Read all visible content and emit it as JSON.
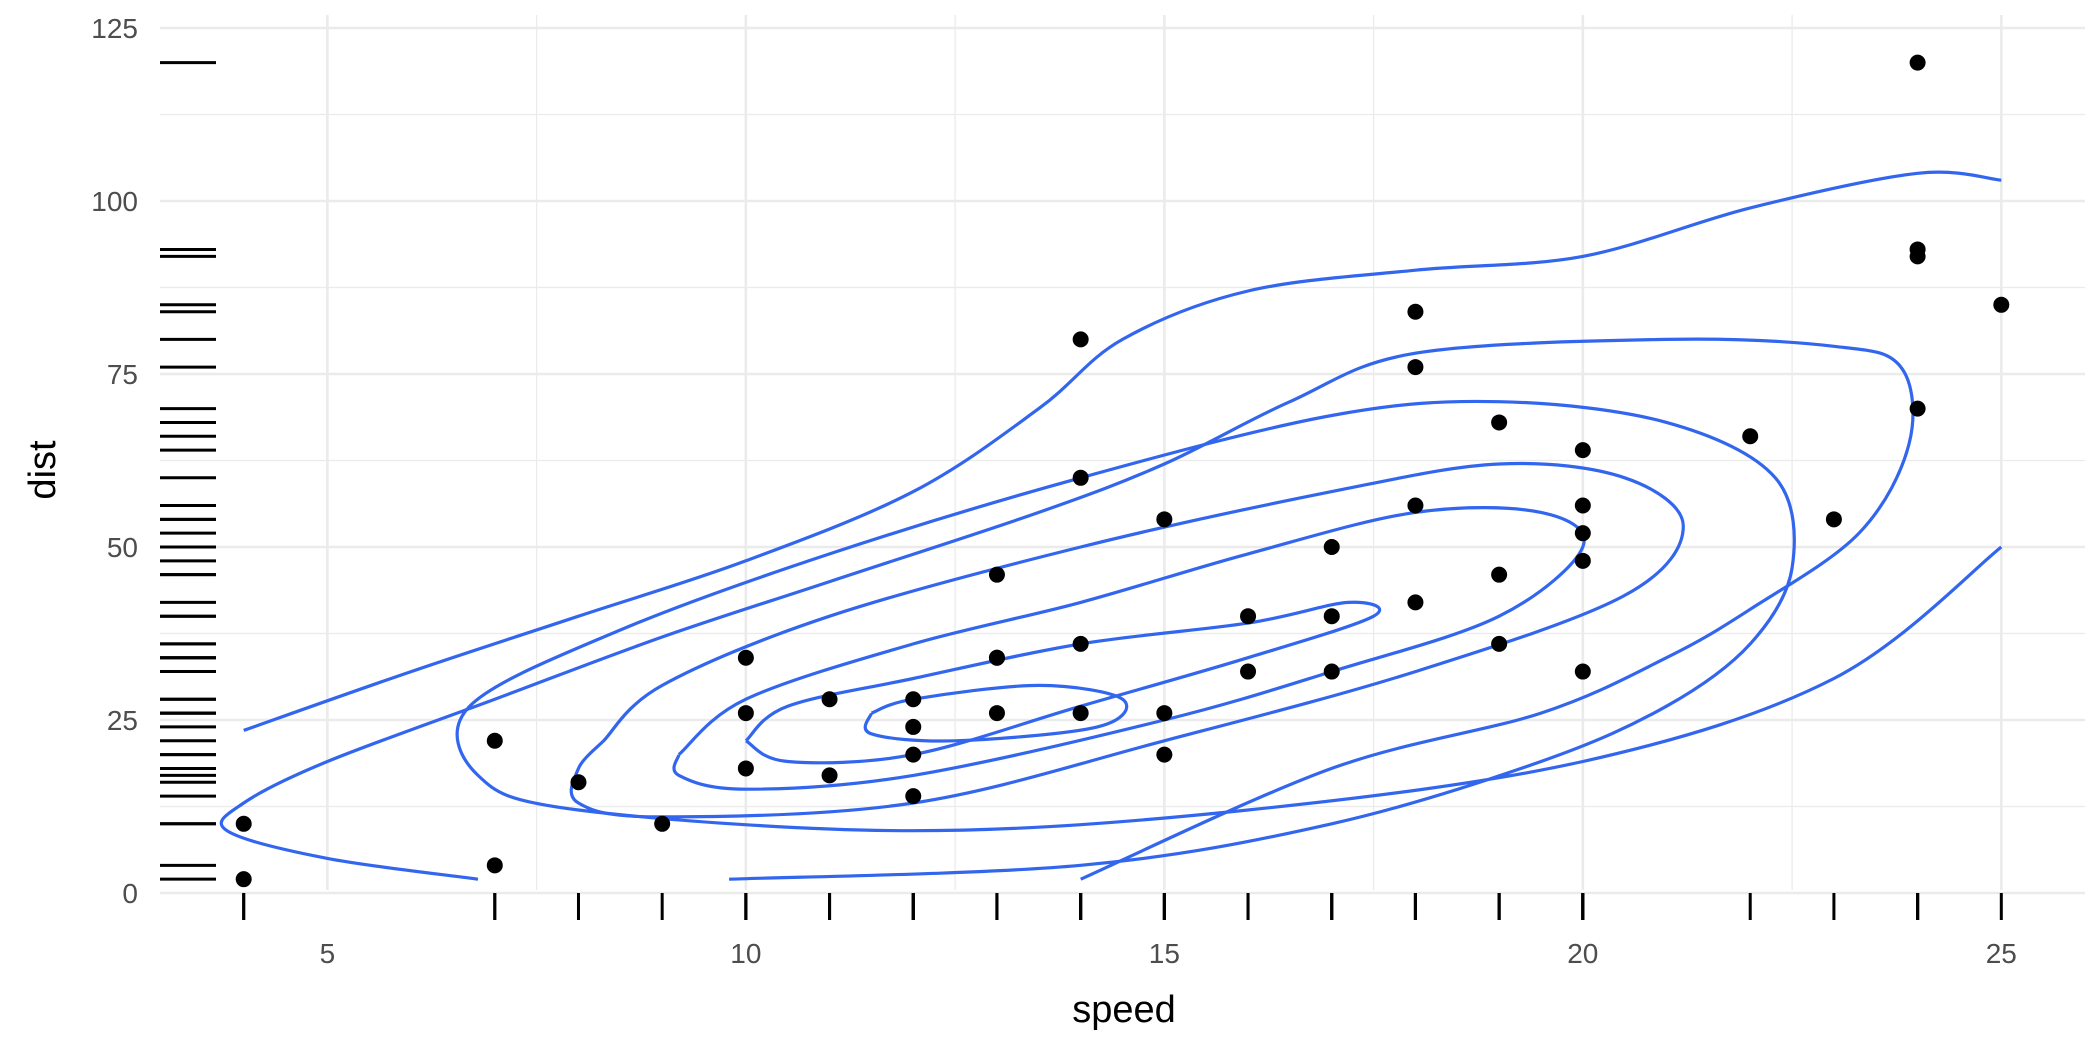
{
  "chart_data": {
    "type": "scatter",
    "title": "",
    "xlabel": "speed",
    "ylabel": "dist",
    "xlim": [
      3,
      26
    ],
    "ylim": [
      0,
      125
    ],
    "x_ticks": [
      5,
      10,
      15,
      20,
      25
    ],
    "y_ticks": [
      0,
      25,
      50,
      75,
      100,
      125
    ],
    "grid": true,
    "legend": "none",
    "colors": {
      "points": "#000000",
      "contours": "#3366ee",
      "grid": "#ebebeb"
    },
    "points": [
      {
        "x": 4,
        "y": 2
      },
      {
        "x": 4,
        "y": 10
      },
      {
        "x": 7,
        "y": 4
      },
      {
        "x": 7,
        "y": 22
      },
      {
        "x": 8,
        "y": 16
      },
      {
        "x": 9,
        "y": 10
      },
      {
        "x": 10,
        "y": 18
      },
      {
        "x": 10,
        "y": 26
      },
      {
        "x": 10,
        "y": 34
      },
      {
        "x": 11,
        "y": 17
      },
      {
        "x": 11,
        "y": 28
      },
      {
        "x": 12,
        "y": 14
      },
      {
        "x": 12,
        "y": 20
      },
      {
        "x": 12,
        "y": 24
      },
      {
        "x": 12,
        "y": 28
      },
      {
        "x": 13,
        "y": 26
      },
      {
        "x": 13,
        "y": 34
      },
      {
        "x": 13,
        "y": 34
      },
      {
        "x": 13,
        "y": 46
      },
      {
        "x": 14,
        "y": 26
      },
      {
        "x": 14,
        "y": 36
      },
      {
        "x": 14,
        "y": 60
      },
      {
        "x": 14,
        "y": 80
      },
      {
        "x": 15,
        "y": 20
      },
      {
        "x": 15,
        "y": 26
      },
      {
        "x": 15,
        "y": 54
      },
      {
        "x": 16,
        "y": 32
      },
      {
        "x": 16,
        "y": 40
      },
      {
        "x": 17,
        "y": 32
      },
      {
        "x": 17,
        "y": 40
      },
      {
        "x": 17,
        "y": 50
      },
      {
        "x": 18,
        "y": 42
      },
      {
        "x": 18,
        "y": 56
      },
      {
        "x": 18,
        "y": 76
      },
      {
        "x": 18,
        "y": 84
      },
      {
        "x": 19,
        "y": 36
      },
      {
        "x": 19,
        "y": 46
      },
      {
        "x": 19,
        "y": 68
      },
      {
        "x": 20,
        "y": 32
      },
      {
        "x": 20,
        "y": 48
      },
      {
        "x": 20,
        "y": 52
      },
      {
        "x": 20,
        "y": 56
      },
      {
        "x": 20,
        "y": 64
      },
      {
        "x": 22,
        "y": 66
      },
      {
        "x": 23,
        "y": 54
      },
      {
        "x": 24,
        "y": 70
      },
      {
        "x": 24,
        "y": 92
      },
      {
        "x": 24,
        "y": 93
      },
      {
        "x": 24,
        "y": 120
      },
      {
        "x": 25,
        "y": 85
      }
    ],
    "contours": [
      [
        [
          4.0,
          23.5
        ],
        [
          6.0,
          32
        ],
        [
          8.0,
          40
        ],
        [
          10.0,
          48
        ],
        [
          12.0,
          58
        ],
        [
          13.5,
          70
        ],
        [
          14.5,
          80
        ],
        [
          16.0,
          87
        ],
        [
          18.0,
          90
        ],
        [
          20.0,
          92
        ],
        [
          22.0,
          99
        ],
        [
          24.0,
          104
        ],
        [
          25.0,
          103
        ]
      ],
      [
        [
          6.8,
          2
        ],
        [
          5.0,
          5
        ],
        [
          3.8,
          9
        ],
        [
          4.0,
          13
        ],
        [
          5.0,
          19
        ],
        [
          7.0,
          28
        ],
        [
          9.0,
          37
        ],
        [
          11.0,
          45
        ],
        [
          13.5,
          55
        ],
        [
          15.0,
          62
        ],
        [
          16.5,
          71
        ],
        [
          18.0,
          78
        ],
        [
          21.0,
          80
        ],
        [
          23.0,
          79
        ],
        [
          23.8,
          76
        ],
        [
          23.9,
          65
        ],
        [
          23.3,
          52
        ],
        [
          22.0,
          41
        ],
        [
          21.0,
          34
        ],
        [
          19.5,
          26
        ],
        [
          17.0,
          18
        ],
        [
          14.0,
          2
        ]
      ],
      [
        [
          9.8,
          2
        ],
        [
          14.0,
          4
        ],
        [
          17.0,
          10
        ],
        [
          19.5,
          19
        ],
        [
          21.0,
          27
        ],
        [
          22.0,
          36
        ],
        [
          22.5,
          47
        ],
        [
          22.3,
          60
        ],
        [
          21.0,
          68
        ],
        [
          19.0,
          71
        ],
        [
          17.0,
          69
        ],
        [
          14.0,
          60
        ],
        [
          11.0,
          49
        ],
        [
          8.5,
          38
        ],
        [
          6.7,
          27
        ],
        [
          6.8,
          17
        ],
        [
          8.0,
          12
        ],
        [
          12.0,
          9
        ],
        [
          16.0,
          12
        ],
        [
          20.0,
          19
        ],
        [
          23.0,
          31
        ],
        [
          25.0,
          50
        ]
      ],
      [
        [
          8.3,
          22
        ],
        [
          9.0,
          30
        ],
        [
          11.0,
          40
        ],
        [
          14.0,
          50
        ],
        [
          17.0,
          58
        ],
        [
          19.0,
          62
        ],
        [
          20.5,
          60
        ],
        [
          21.2,
          53
        ],
        [
          20.5,
          43
        ],
        [
          18.0,
          32
        ],
        [
          15.0,
          22
        ],
        [
          12.0,
          13
        ],
        [
          9.0,
          11
        ],
        [
          8.0,
          13
        ],
        [
          8.0,
          18
        ],
        [
          8.3,
          22
        ]
      ],
      [
        [
          9.2,
          20
        ],
        [
          10.0,
          28
        ],
        [
          12.0,
          36
        ],
        [
          14.0,
          42
        ],
        [
          16.0,
          49
        ],
        [
          18.0,
          55
        ],
        [
          19.5,
          55
        ],
        [
          20.0,
          50
        ],
        [
          19.0,
          40
        ],
        [
          17.0,
          32
        ],
        [
          15.0,
          25
        ],
        [
          12.0,
          17
        ],
        [
          10.0,
          15
        ],
        [
          9.2,
          17
        ],
        [
          9.2,
          20
        ]
      ],
      [
        [
          10.0,
          22
        ],
        [
          10.5,
          27
        ],
        [
          12.0,
          31
        ],
        [
          14.0,
          36
        ],
        [
          16.0,
          39
        ],
        [
          17.2,
          42
        ],
        [
          17.5,
          40
        ],
        [
          16.0,
          34
        ],
        [
          14.0,
          27
        ],
        [
          12.0,
          20
        ],
        [
          10.5,
          19
        ],
        [
          10.0,
          22
        ]
      ],
      [
        [
          11.5,
          26
        ],
        [
          12.0,
          28
        ],
        [
          13.5,
          30
        ],
        [
          14.5,
          28
        ],
        [
          14.2,
          24
        ],
        [
          12.5,
          22
        ],
        [
          11.5,
          23
        ],
        [
          11.5,
          26
        ]
      ]
    ]
  }
}
